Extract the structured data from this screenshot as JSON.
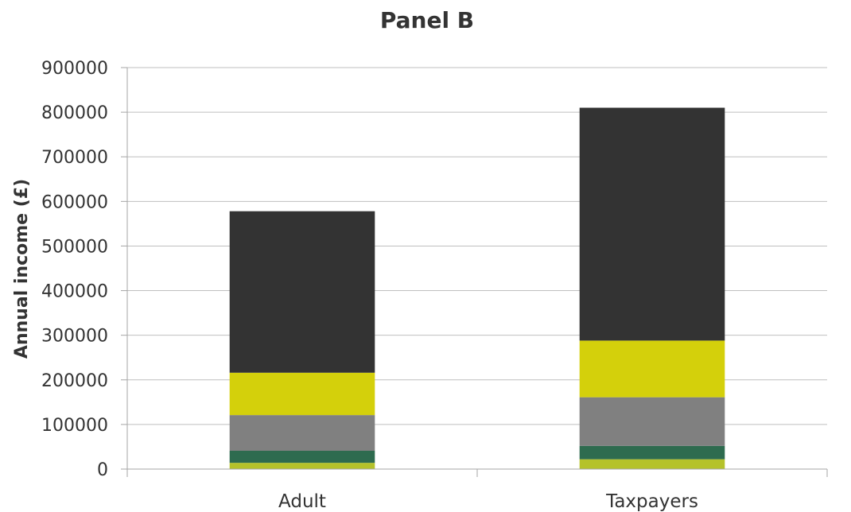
{
  "chart_data": {
    "type": "bar",
    "stacked": true,
    "title": "Panel B",
    "xlabel": "",
    "ylabel": "Annual income (£)",
    "ylim": [
      0,
      900000
    ],
    "yticks": [
      0,
      100000,
      200000,
      300000,
      400000,
      500000,
      600000,
      700000,
      800000,
      900000
    ],
    "grid": true,
    "legend": "none",
    "categories": [
      "Adult",
      "Taxpayers"
    ],
    "series": [
      {
        "color": "#b5c22a",
        "values": [
          14000,
          22000
        ]
      },
      {
        "color": "#2e6b4f",
        "values": [
          27000,
          30000
        ]
      },
      {
        "color": "#808080",
        "values": [
          80000,
          109000
        ]
      },
      {
        "color": "#d4d00b",
        "values": [
          95000,
          127000
        ]
      },
      {
        "color": "#333333",
        "values": [
          362000,
          522000
        ]
      }
    ]
  }
}
